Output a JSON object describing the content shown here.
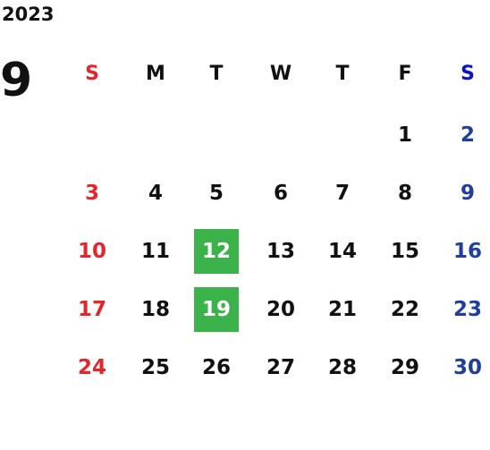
{
  "year": "2023",
  "month": "9",
  "weekdays": [
    "S",
    "M",
    "T",
    "W",
    "T",
    "F",
    "S"
  ],
  "weeks": [
    [
      null,
      null,
      null,
      null,
      null,
      1,
      2
    ],
    [
      3,
      4,
      5,
      6,
      7,
      8,
      9
    ],
    [
      10,
      11,
      12,
      13,
      14,
      15,
      16
    ],
    [
      17,
      18,
      19,
      20,
      21,
      22,
      23
    ],
    [
      24,
      25,
      26,
      27,
      28,
      29,
      30
    ]
  ],
  "highlighted_days": [
    12,
    19
  ],
  "highlight_color": "#3bb34a",
  "sunday_color": "#e3262b",
  "saturday_header_color": "#0a14c8",
  "saturday_color": "#1f3f99"
}
